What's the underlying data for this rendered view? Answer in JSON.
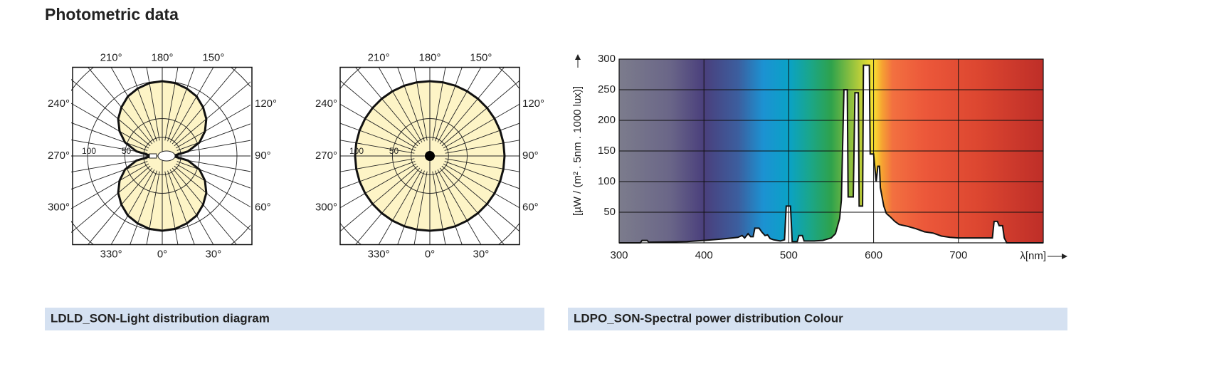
{
  "header": {
    "title": "Photometric data"
  },
  "light_distribution": {
    "caption": "LDLD_SON-Light distribution diagram",
    "diagrams": [
      {
        "type": "polar",
        "angles": [
          0,
          10,
          20,
          30,
          40,
          50,
          60,
          70,
          80,
          90,
          100,
          110,
          120,
          130,
          140,
          150,
          160,
          170,
          180,
          190,
          200,
          210,
          220,
          230,
          240,
          250,
          260,
          270,
          280,
          290,
          300,
          310,
          320,
          330,
          340,
          350
        ],
        "values": [
          100,
          99,
          96,
          92,
          85,
          77,
          66,
          53,
          35,
          14,
          35,
          53,
          66,
          77,
          85,
          92,
          96,
          99,
          100,
          99,
          96,
          92,
          85,
          77,
          66,
          53,
          35,
          14,
          35,
          53,
          66,
          77,
          85,
          92,
          96,
          99
        ],
        "rticks": [
          100,
          50
        ],
        "angle_ticks": [
          {
            "value": 210,
            "label": "210°"
          },
          {
            "value": 180,
            "label": "180°"
          },
          {
            "value": 150,
            "label": "150°"
          },
          {
            "value": 240,
            "label": "240°"
          },
          {
            "value": 270,
            "label": "270°"
          },
          {
            "value": 300,
            "label": "300°"
          },
          {
            "value": 120,
            "label": "120°"
          },
          {
            "value": 90,
            "label": "90°"
          },
          {
            "value": 60,
            "label": "60°"
          },
          {
            "value": 330,
            "label": "330°"
          },
          {
            "value": 0,
            "label": "0°"
          },
          {
            "value": 30,
            "label": "30°"
          }
        ]
      },
      {
        "type": "polar",
        "angles": [
          0,
          10,
          20,
          30,
          40,
          50,
          60,
          70,
          80,
          90,
          100,
          110,
          120,
          130,
          140,
          150,
          160,
          170,
          180,
          190,
          200,
          210,
          220,
          230,
          240,
          250,
          260,
          270,
          280,
          290,
          300,
          310,
          320,
          330,
          340,
          350
        ],
        "values": [
          100,
          100,
          100,
          100,
          100,
          100,
          100,
          100,
          100,
          100,
          100,
          100,
          100,
          100,
          100,
          100,
          100,
          100,
          100,
          100,
          100,
          100,
          100,
          100,
          100,
          100,
          100,
          100,
          100,
          100,
          100,
          100,
          100,
          100,
          100,
          100
        ],
        "rticks": [
          100,
          50
        ],
        "angle_ticks": [
          {
            "value": 210,
            "label": "210°"
          },
          {
            "value": 180,
            "label": "180°"
          },
          {
            "value": 150,
            "label": "150°"
          },
          {
            "value": 240,
            "label": "240°"
          },
          {
            "value": 270,
            "label": "270°"
          },
          {
            "value": 300,
            "label": "300°"
          },
          {
            "value": 120,
            "label": "120°"
          },
          {
            "value": 90,
            "label": "90°"
          },
          {
            "value": 60,
            "label": "60°"
          },
          {
            "value": 330,
            "label": "330°"
          },
          {
            "value": 0,
            "label": "0°"
          },
          {
            "value": 30,
            "label": "30°"
          }
        ]
      }
    ]
  },
  "spectral": {
    "caption": "LDPO_SON-Spectral power distribution Colour",
    "chart": {
      "type": "line",
      "y_label": "[µW / (m² . 5nm . 1000 lux)]",
      "x_label": "λ[nm]",
      "x": [
        300,
        325,
        327,
        333,
        335,
        380,
        400,
        420,
        440,
        445,
        448,
        452,
        455,
        458,
        460,
        465,
        468,
        472,
        475,
        478,
        482,
        490,
        495,
        497,
        502,
        504,
        510,
        512,
        516,
        518,
        530,
        540,
        550,
        555,
        560,
        562,
        565,
        569,
        570,
        576,
        578,
        582,
        583,
        587,
        588,
        595,
        596,
        600,
        603,
        605,
        607,
        608,
        612,
        615,
        620,
        625,
        630,
        640,
        650,
        660,
        670,
        680,
        690,
        700,
        740,
        742,
        746,
        748,
        752,
        754,
        757,
        800
      ],
      "values": [
        0,
        0,
        4,
        4,
        1,
        2,
        4,
        6,
        9,
        12,
        8,
        15,
        10,
        10,
        24,
        24,
        18,
        12,
        13,
        7,
        5,
        3,
        5,
        60,
        60,
        2,
        2,
        12,
        12,
        3,
        3,
        4,
        8,
        15,
        40,
        70,
        250,
        250,
        75,
        75,
        245,
        245,
        60,
        60,
        290,
        290,
        145,
        145,
        100,
        125,
        125,
        90,
        60,
        48,
        42,
        35,
        30,
        27,
        23,
        18,
        16,
        11,
        9,
        8,
        8,
        35,
        35,
        28,
        28,
        8,
        0,
        0
      ],
      "xlim": [
        300,
        800
      ],
      "xticks": [
        300,
        400,
        500,
        600,
        700
      ],
      "ylim": [
        0,
        300
      ],
      "yticks": [
        50,
        100,
        150,
        200,
        250,
        300
      ],
      "grid": true
    }
  }
}
